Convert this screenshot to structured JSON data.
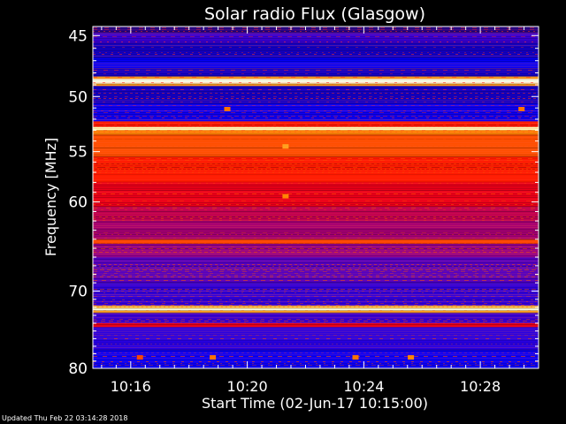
{
  "chart_data": {
    "type": "heatmap",
    "title": "Solar radio Flux (Glasgow)",
    "xlabel": "Start Time (02-Jun-17 10:15:00)",
    "ylabel": "Frequency [MHz]",
    "x_ticks": [
      "10:16",
      "10:20",
      "10:24",
      "10:28"
    ],
    "x_tick_minutes": [
      16,
      20,
      24,
      28
    ],
    "xlim_minutes": [
      14.7,
      30.0
    ],
    "y_ticks": [
      45,
      50,
      55,
      60,
      70,
      80
    ],
    "ylim": [
      44.3,
      80
    ],
    "colormap": [
      "#000000",
      "#2b0080",
      "#0000ff",
      "#8000a0",
      "#ff0000",
      "#ff8000",
      "#ffff80",
      "#ffffff"
    ],
    "bands": [
      {
        "f0": 44.3,
        "f1": 44.8,
        "level": 0.15
      },
      {
        "f0": 44.8,
        "f1": 45.6,
        "level": 0.35
      },
      {
        "f0": 45.6,
        "f1": 46.8,
        "level": 0.22
      },
      {
        "f0": 46.8,
        "f1": 47.6,
        "level": 0.28
      },
      {
        "f0": 47.6,
        "f1": 48.3,
        "level": 0.22
      },
      {
        "f0": 48.3,
        "f1": 48.5,
        "level": 0.75
      },
      {
        "f0": 48.5,
        "f1": 48.9,
        "level": 0.97
      },
      {
        "f0": 48.9,
        "f1": 49.1,
        "level": 0.75
      },
      {
        "f0": 49.1,
        "f1": 50.6,
        "level": 0.22
      },
      {
        "f0": 50.6,
        "f1": 52.2,
        "level": 0.3
      },
      {
        "f0": 52.2,
        "f1": 52.7,
        "level": 0.6
      },
      {
        "f0": 52.7,
        "f1": 53.0,
        "level": 0.92
      },
      {
        "f0": 53.0,
        "f1": 53.4,
        "level": 0.72
      },
      {
        "f0": 53.4,
        "f1": 55.5,
        "level": 0.66
      },
      {
        "f0": 55.5,
        "f1": 58.0,
        "level": 0.6
      },
      {
        "f0": 58.0,
        "f1": 60.5,
        "level": 0.55
      },
      {
        "f0": 60.5,
        "f1": 62.0,
        "level": 0.5
      },
      {
        "f0": 62.0,
        "f1": 64.0,
        "level": 0.47
      },
      {
        "f0": 64.0,
        "f1": 64.5,
        "level": 0.65
      },
      {
        "f0": 64.5,
        "f1": 66.0,
        "level": 0.45
      },
      {
        "f0": 66.0,
        "f1": 69.0,
        "level": 0.38
      },
      {
        "f0": 69.0,
        "f1": 71.8,
        "level": 0.34
      },
      {
        "f0": 71.8,
        "f1": 72.1,
        "level": 0.8
      },
      {
        "f0": 72.1,
        "f1": 72.4,
        "level": 0.96
      },
      {
        "f0": 72.4,
        "f1": 72.7,
        "level": 0.75
      },
      {
        "f0": 72.7,
        "f1": 74.0,
        "level": 0.35
      },
      {
        "f0": 74.0,
        "f1": 74.5,
        "level": 0.55
      },
      {
        "f0": 74.5,
        "f1": 77.5,
        "level": 0.33
      },
      {
        "f0": 77.5,
        "f1": 80.0,
        "level": 0.3
      }
    ],
    "spots": [
      {
        "t": 21.3,
        "f": 54.5,
        "level": 0.75
      },
      {
        "t": 21.3,
        "f": 59.4,
        "level": 0.72
      },
      {
        "t": 19.3,
        "f": 51.1,
        "level": 0.7
      },
      {
        "t": 29.4,
        "f": 51.1,
        "level": 0.7
      },
      {
        "t": 18.8,
        "f": 78.5,
        "level": 0.7
      },
      {
        "t": 23.7,
        "f": 78.5,
        "level": 0.7
      },
      {
        "t": 25.6,
        "f": 78.5,
        "level": 0.72
      },
      {
        "t": 16.3,
        "f": 78.5,
        "level": 0.65
      }
    ]
  },
  "footer": "Updated Thu Feb 22 03:14:28 2018"
}
